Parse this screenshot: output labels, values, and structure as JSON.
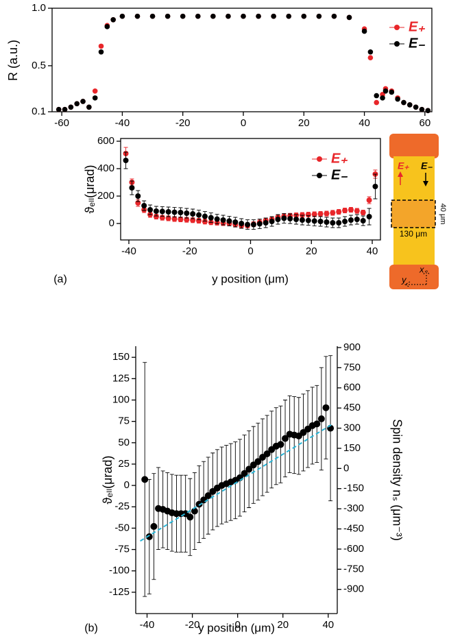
{
  "chart_data": [
    {
      "type": "scatter",
      "ylabel": "R (a.u.)",
      "xlim": [
        -63.2,
        62.3
      ],
      "ylim": [
        0.1,
        1.0
      ],
      "xticks": [
        -60,
        -40,
        -20,
        0,
        20,
        40,
        60
      ],
      "yticks": [
        {
          "value": 1.0,
          "label": "1.0"
        },
        0.5,
        0.1
      ],
      "legend": "upper right",
      "x": [
        -61,
        -59,
        -57,
        -55,
        -53,
        -51,
        -49,
        -47,
        -45,
        -43,
        -40,
        -35,
        -30,
        -25,
        -20,
        -15,
        -10,
        -5,
        0,
        5,
        10,
        15,
        20,
        25,
        30,
        35,
        40,
        42,
        44,
        46,
        47,
        49,
        51,
        53,
        55,
        57,
        59,
        61
      ],
      "series": [
        {
          "name": "E₊",
          "color": "#e8262a",
          "values": [
            0.12,
            0.12,
            0.14,
            0.17,
            0.19,
            0.14,
            0.28,
            0.67,
            0.85,
            0.9,
            0.93,
            0.93,
            0.93,
            0.93,
            0.93,
            0.93,
            0.93,
            0.93,
            0.93,
            0.93,
            0.93,
            0.93,
            0.93,
            0.93,
            0.93,
            0.92,
            0.82,
            0.57,
            0.18,
            0.25,
            0.3,
            0.28,
            0.22,
            0.18,
            0.16,
            0.14,
            0.12,
            0.11
          ]
        },
        {
          "name": "E₋",
          "color": "#000000",
          "values": [
            0.12,
            0.12,
            0.14,
            0.17,
            0.19,
            0.14,
            0.22,
            0.62,
            0.84,
            0.9,
            0.93,
            0.93,
            0.93,
            0.93,
            0.93,
            0.93,
            0.93,
            0.93,
            0.93,
            0.93,
            0.93,
            0.93,
            0.93,
            0.93,
            0.93,
            0.92,
            0.8,
            0.62,
            0.24,
            0.22,
            0.28,
            0.27,
            0.21,
            0.18,
            0.16,
            0.14,
            0.12,
            0.11
          ]
        }
      ]
    },
    {
      "type": "errorbar",
      "ylabel": "ϑₑₗₗ(μrad)",
      "xlabel": "y position (μm)",
      "panel": "(a)",
      "xlim": [
        -42.7,
        42.7
      ],
      "ylim": [
        -120,
        620
      ],
      "xticks": [
        -40,
        -20,
        0,
        20,
        40
      ],
      "yticks": [
        0,
        200,
        400,
        600
      ],
      "legend": "upper right",
      "x": [
        -41,
        -39,
        -37,
        -35,
        -33,
        -31,
        -29,
        -27,
        -25,
        -23,
        -21,
        -19,
        -17,
        -15,
        -13,
        -11,
        -9,
        -7,
        -5,
        -3,
        -1,
        1,
        3,
        5,
        7,
        9,
        11,
        13,
        15,
        17,
        19,
        21,
        23,
        25,
        27,
        29,
        31,
        33,
        35,
        37,
        39,
        41
      ],
      "series": [
        {
          "name": "E₊",
          "color": "#e8262a",
          "values": [
            510,
            300,
            150,
            100,
            65,
            50,
            42,
            38,
            33,
            30,
            27,
            24,
            20,
            14,
            9,
            6,
            3,
            0,
            -8,
            -15,
            -14,
            -5,
            8,
            22,
            30,
            45,
            52,
            56,
            60,
            62,
            65,
            67,
            70,
            72,
            78,
            85,
            95,
            100,
            92,
            80,
            170,
            360
          ],
          "errors": [
            45,
            25,
            25,
            20,
            20,
            18,
            18,
            18,
            18,
            18,
            18,
            18,
            18,
            18,
            18,
            18,
            18,
            18,
            18,
            18,
            18,
            18,
            18,
            18,
            18,
            18,
            18,
            18,
            18,
            18,
            18,
            18,
            18,
            18,
            18,
            18,
            18,
            18,
            18,
            18,
            25,
            30
          ]
        },
        {
          "name": "E₋",
          "color": "#000000",
          "values": [
            460,
            260,
            200,
            130,
            100,
            90,
            88,
            85,
            82,
            80,
            75,
            70,
            62,
            52,
            42,
            32,
            25,
            18,
            10,
            0,
            -8,
            -8,
            -2,
            5,
            15,
            30,
            38,
            35,
            30,
            25,
            22,
            18,
            15,
            10,
            5,
            5,
            15,
            25,
            30,
            20,
            50,
            270
          ],
          "errors": [
            60,
            50,
            40,
            35,
            35,
            35,
            35,
            35,
            35,
            35,
            35,
            35,
            35,
            35,
            35,
            35,
            35,
            35,
            35,
            35,
            35,
            35,
            35,
            35,
            35,
            35,
            35,
            35,
            35,
            35,
            35,
            35,
            35,
            35,
            35,
            35,
            35,
            35,
            35,
            35,
            60,
            90
          ]
        }
      ]
    },
    {
      "type": "errorbar",
      "ylabel": "ϑₑₗₗ(μrad)",
      "xlabel": "y position (μm)",
      "y2label": "Spin density nₛ (μm⁻³)",
      "panel": "(b)",
      "xlim": [
        -45,
        44
      ],
      "ylim": [
        -150,
        163
      ],
      "y2lim": [
        -1080,
        910
      ],
      "xticks": [
        -40,
        -20,
        0,
        20,
        40
      ],
      "yticks": [
        150,
        125,
        100,
        75,
        50,
        25,
        0,
        -25,
        -50,
        -75,
        -100,
        -125
      ],
      "y2ticks": [
        900,
        750,
        600,
        450,
        300,
        150,
        0,
        -150,
        -300,
        -450,
        -600,
        -750,
        -900
      ],
      "color": "#000000",
      "x": [
        -41,
        -39,
        -37,
        -35,
        -33,
        -31,
        -29,
        -27,
        -25,
        -23,
        -21,
        -19,
        -17,
        -15,
        -13,
        -11,
        -9,
        -7,
        -5,
        -3,
        -1,
        1,
        3,
        5,
        7,
        9,
        11,
        13,
        15,
        17,
        19,
        21,
        23,
        25,
        27,
        29,
        31,
        33,
        35,
        37,
        39,
        41
      ],
      "values": [
        7,
        -60,
        -48,
        -27,
        -28,
        -30,
        -32,
        -33,
        -33,
        -33,
        -37,
        -30,
        -22,
        -17,
        -12,
        -7,
        -3,
        0,
        2,
        4,
        6,
        9,
        14,
        19,
        24,
        28,
        33,
        37,
        42,
        46,
        48,
        55,
        60,
        59,
        58,
        62,
        66,
        70,
        72,
        78,
        91,
        67
      ],
      "errors": [
        137,
        67,
        62,
        48,
        45,
        45,
        45,
        45,
        45,
        45,
        45,
        45,
        45,
        45,
        45,
        45,
        45,
        45,
        45,
        45,
        45,
        45,
        45,
        45,
        45,
        45,
        45,
        45,
        45,
        45,
        45,
        45,
        45,
        45,
        45,
        45,
        45,
        45,
        45,
        60,
        60,
        85
      ],
      "fit": {
        "color": "#29b6d8",
        "x": [
          -43,
          42
        ],
        "values": [
          -65,
          72
        ]
      }
    }
  ],
  "inset": {
    "e_plus": "E₊",
    "e_minus": "E₋",
    "height": "40 μm",
    "width": "130 μm",
    "x_axis": "x",
    "y_axis": "y"
  }
}
